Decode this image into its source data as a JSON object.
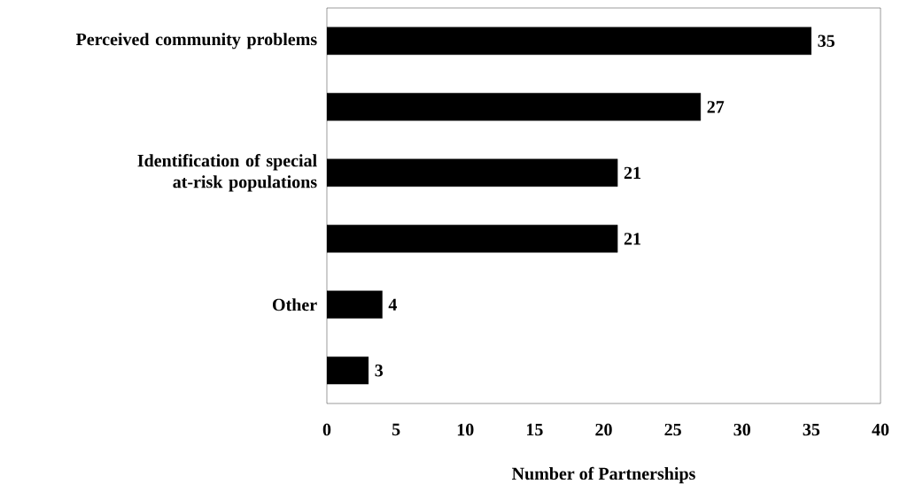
{
  "chart_data": {
    "type": "bar",
    "orientation": "horizontal",
    "xlabel": "Number of Partnerships",
    "categories": [
      "Perceived community problems",
      null,
      "Identification of special at-risk populations",
      null,
      "Other",
      null
    ],
    "values": [
      35,
      27,
      21,
      21,
      4,
      3
    ],
    "color": "#000000",
    "data_labels": true,
    "xlim": [
      0,
      40
    ],
    "xticks": [
      0,
      5,
      10,
      15,
      20,
      25,
      30,
      35,
      40
    ],
    "grid": false
  }
}
